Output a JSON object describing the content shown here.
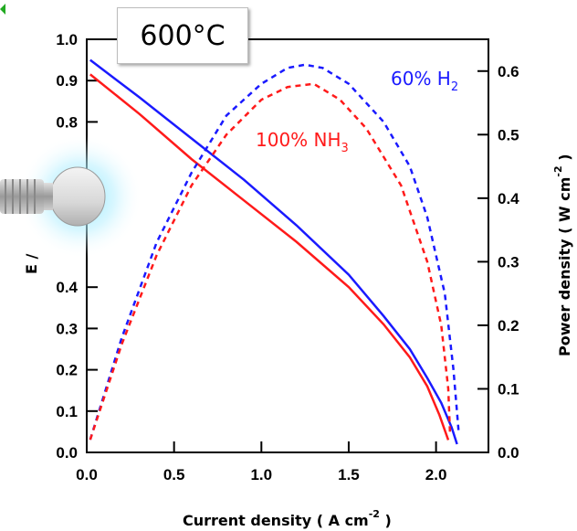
{
  "annotation": {
    "temperature": "600°C"
  },
  "chart_data": {
    "type": "line",
    "xlabel": "Current density ( A cm",
    "xlabel_sup": "-2",
    "xlabel_end": " )",
    "ylabel_left": "E /",
    "ylabel_right": "Power density ( W cm",
    "ylabel_right_sup": "-2",
    "ylabel_right_end": " )",
    "xlim": [
      0,
      2.3
    ],
    "ylim_left": [
      0,
      1.0
    ],
    "ylim_right": [
      0,
      0.65
    ],
    "x_ticks": [
      0.0,
      0.5,
      1.0,
      1.5,
      2.0
    ],
    "x_tick_labels": [
      "0.0",
      "0.5",
      "1.0",
      "1.5",
      "2.0"
    ],
    "y_left_ticks": [
      0.0,
      0.1,
      0.2,
      0.3,
      0.4,
      0.8,
      0.9,
      1.0
    ],
    "y_left_tick_labels": [
      "0.0",
      "0.1",
      "0.2",
      "0.3",
      "0.4",
      "0.8",
      "0.9",
      "1.0"
    ],
    "y_right_ticks": [
      0.0,
      0.1,
      0.2,
      0.3,
      0.4,
      0.5,
      0.6
    ],
    "y_right_tick_labels": [
      "0.0",
      "0.1",
      "0.2",
      "0.3",
      "0.4",
      "0.5",
      "0.6"
    ],
    "colors": {
      "h2": "#1a1aff",
      "nh3": "#ff1a1a"
    },
    "series": [
      {
        "name": "60% H2",
        "label_main": "60%  H",
        "label_sub": "2",
        "color": "#1a1aff",
        "axis": "left",
        "style": "solid",
        "x": [
          0.02,
          0.3,
          0.6,
          0.9,
          1.2,
          1.5,
          1.7,
          1.85,
          1.95,
          2.03,
          2.09,
          2.12
        ],
        "y": [
          0.95,
          0.86,
          0.76,
          0.66,
          0.55,
          0.43,
          0.33,
          0.25,
          0.18,
          0.12,
          0.06,
          0.02
        ]
      },
      {
        "name": "100% NH3",
        "label_main": "100%  NH",
        "label_sub": "3",
        "color": "#ff1a1a",
        "axis": "left",
        "style": "solid",
        "x": [
          0.02,
          0.3,
          0.6,
          0.9,
          1.2,
          1.5,
          1.7,
          1.85,
          1.95,
          2.02,
          2.07
        ],
        "y": [
          0.915,
          0.82,
          0.71,
          0.61,
          0.51,
          0.4,
          0.31,
          0.23,
          0.16,
          0.09,
          0.03
        ]
      },
      {
        "name": "60% H2 power",
        "color": "#1a1aff",
        "axis": "right",
        "style": "dashed",
        "x": [
          0.02,
          0.2,
          0.4,
          0.6,
          0.8,
          1.0,
          1.15,
          1.25,
          1.35,
          1.5,
          1.7,
          1.85,
          1.95,
          2.05,
          2.1,
          2.13
        ],
        "y": [
          0.02,
          0.18,
          0.33,
          0.44,
          0.53,
          0.58,
          0.605,
          0.61,
          0.605,
          0.58,
          0.52,
          0.45,
          0.37,
          0.25,
          0.13,
          0.03
        ]
      },
      {
        "name": "100% NH3 power",
        "color": "#ff1a1a",
        "axis": "right",
        "style": "dashed",
        "x": [
          0.02,
          0.2,
          0.4,
          0.6,
          0.8,
          1.0,
          1.15,
          1.3,
          1.45,
          1.6,
          1.8,
          1.95,
          2.03,
          2.07,
          2.08
        ],
        "y": [
          0.02,
          0.17,
          0.31,
          0.42,
          0.5,
          0.555,
          0.575,
          0.58,
          0.555,
          0.51,
          0.42,
          0.3,
          0.2,
          0.1,
          0.03
        ]
      }
    ]
  }
}
